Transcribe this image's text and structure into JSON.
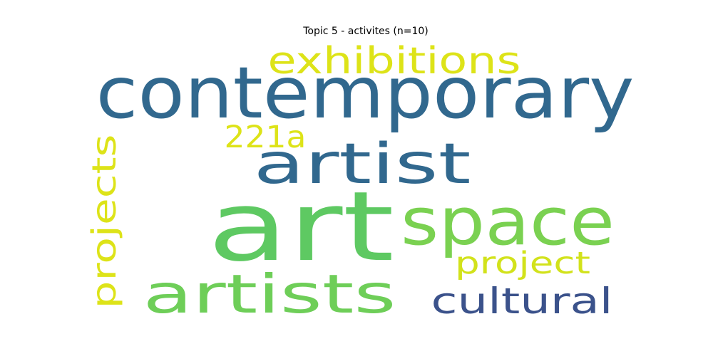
{
  "chart_data": {
    "type": "wordcloud",
    "title": "Topic 5 - activites (n=10)",
    "words": [
      {
        "text": "contemporary",
        "color": "#31688e"
      },
      {
        "text": "art",
        "color": "#5ec962"
      },
      {
        "text": "space",
        "color": "#7ad151"
      },
      {
        "text": "artist",
        "color": "#31688e"
      },
      {
        "text": "artists",
        "color": "#6ece58"
      },
      {
        "text": "exhibitions",
        "color": "#dde318"
      },
      {
        "text": "projects",
        "color": "#dde318"
      },
      {
        "text": "cultural",
        "color": "#3b528b"
      },
      {
        "text": "project",
        "color": "#d2e21b"
      },
      {
        "text": "221a",
        "color": "#dde318"
      }
    ]
  }
}
